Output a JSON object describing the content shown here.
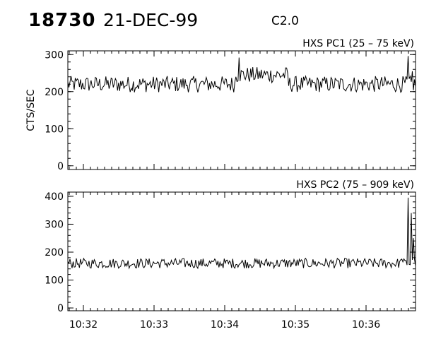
{
  "header": {
    "event_id": "18730",
    "date": "21-DEC-99",
    "flare_class": "C2.0"
  },
  "x_axis": {
    "tick_labels": [
      "10:32",
      "10:33",
      "10:34",
      "10:35",
      "10:36"
    ],
    "tick_minutes": [
      32,
      33,
      34,
      35,
      36
    ],
    "range_minutes": [
      31.78,
      36.7
    ]
  },
  "chart_data": [
    {
      "type": "line",
      "title": "HXS PC1 (25 – 75 keV)",
      "ylabel": "CTS/SEC",
      "xlabel": "",
      "ylim": [
        -10,
        310
      ],
      "yticks": [
        0,
        100,
        200,
        300
      ],
      "grid": false,
      "baseline": 220,
      "noise": 22,
      "bump": {
        "start": 34.15,
        "end": 34.9,
        "level": 245
      },
      "peaks": [
        {
          "x": 34.2,
          "y": 292
        },
        {
          "x": 36.6,
          "y": 296
        },
        {
          "x": 36.65,
          "y": 255
        }
      ],
      "series": [
        {
          "x_start": 31.78,
          "x_end": 36.7,
          "points": 330
        }
      ]
    },
    {
      "type": "line",
      "title": "HXS PC2 (75 – 909 keV)",
      "ylabel": "",
      "xlabel": "",
      "ylim": [
        -10,
        415
      ],
      "yticks": [
        0,
        100,
        200,
        300,
        400
      ],
      "grid": false,
      "baseline": 160,
      "noise": 18,
      "bump": null,
      "peaks": [
        {
          "x": 36.5,
          "y": 175
        },
        {
          "x": 36.6,
          "y": 395
        },
        {
          "x": 36.64,
          "y": 340
        },
        {
          "x": 36.67,
          "y": 250
        }
      ],
      "series": [
        {
          "x_start": 31.78,
          "x_end": 36.7,
          "points": 330
        }
      ]
    }
  ]
}
